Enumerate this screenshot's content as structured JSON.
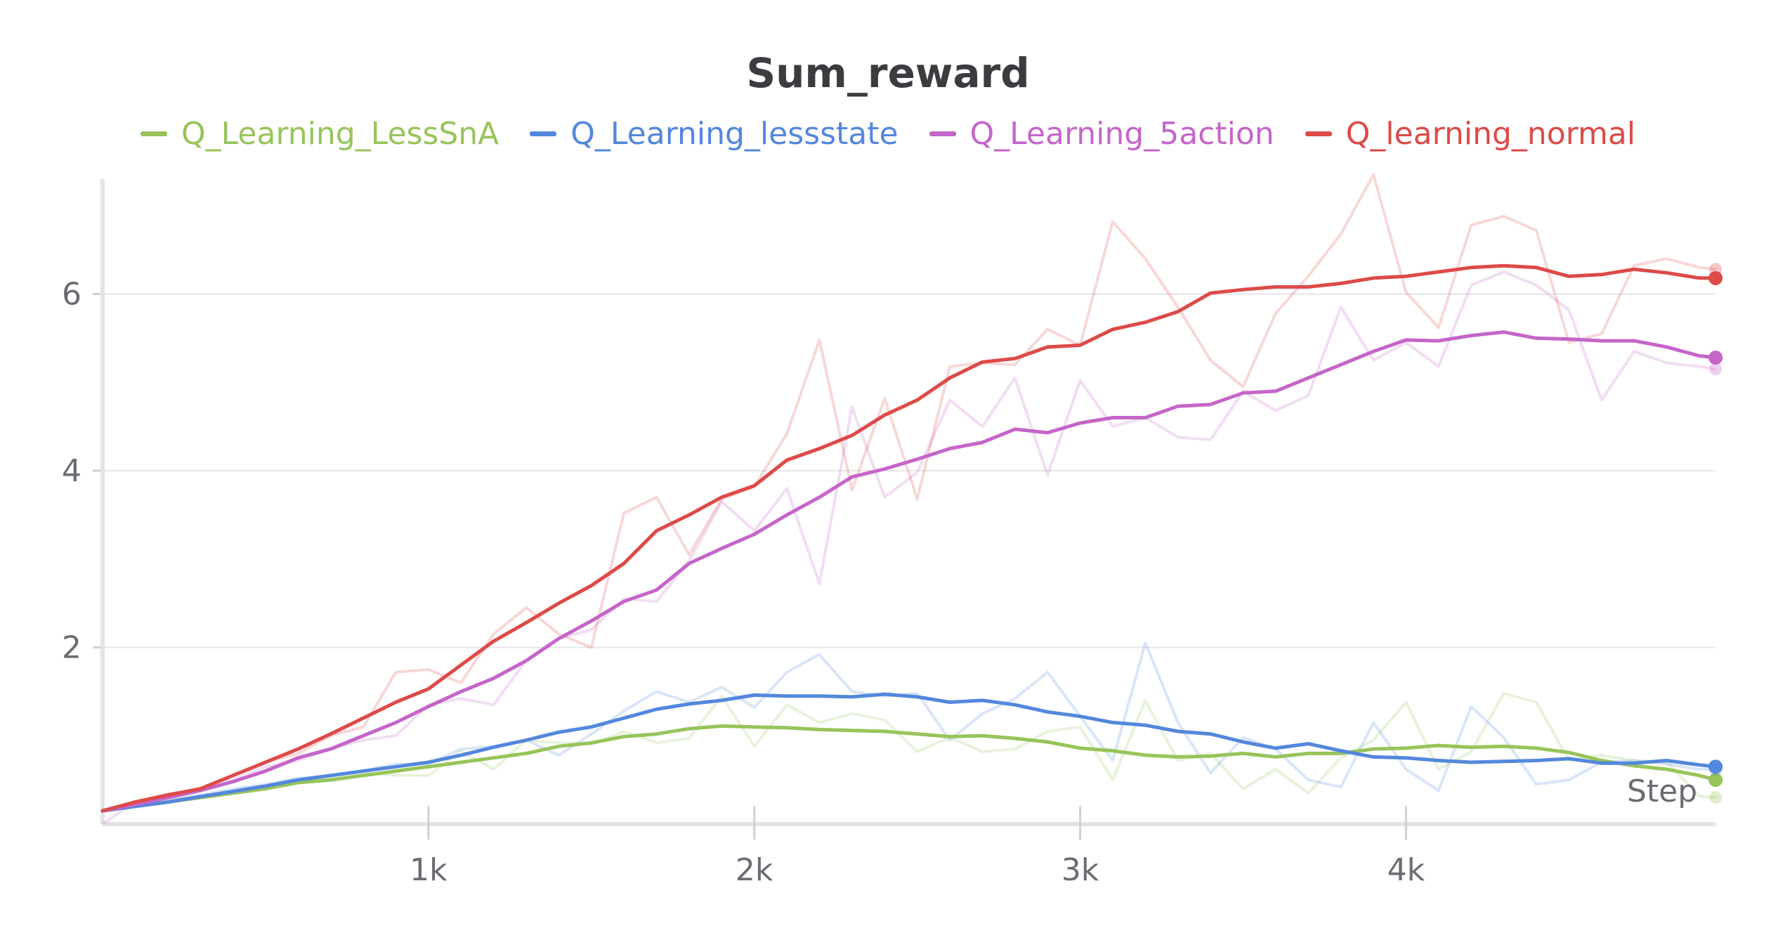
{
  "chart_data": {
    "type": "line",
    "title": "Sum_reward",
    "xlabel": "Step",
    "ylabel": "",
    "xlim": [
      0,
      4950
    ],
    "ylim": [
      0,
      7.3
    ],
    "x_ticks": [
      {
        "value": 1000,
        "label": "1k"
      },
      {
        "value": 2000,
        "label": "2k"
      },
      {
        "value": 3000,
        "label": "3k"
      },
      {
        "value": 4000,
        "label": "4k"
      }
    ],
    "y_ticks": [
      {
        "value": 2,
        "label": "2"
      },
      {
        "value": 4,
        "label": "4"
      },
      {
        "value": 6,
        "label": "6"
      }
    ],
    "grid": "horizontal",
    "legend_position": "top-center",
    "x": [
      0,
      100,
      200,
      300,
      400,
      500,
      600,
      700,
      800,
      900,
      1000,
      1100,
      1200,
      1300,
      1400,
      1500,
      1600,
      1700,
      1800,
      1900,
      2000,
      2100,
      2200,
      2300,
      2400,
      2500,
      2600,
      2700,
      2800,
      2900,
      3000,
      3100,
      3200,
      3300,
      3400,
      3500,
      3600,
      3700,
      3800,
      3900,
      4000,
      4100,
      4200,
      4300,
      4400,
      4500,
      4600,
      4700,
      4800,
      4900,
      4950
    ],
    "series": [
      {
        "name": "Q_Learning_LessSnA",
        "color": "#97c45a",
        "values": [
          0.15,
          0.2,
          0.25,
          0.3,
          0.35,
          0.4,
          0.47,
          0.5,
          0.55,
          0.6,
          0.65,
          0.7,
          0.75,
          0.8,
          0.88,
          0.92,
          0.99,
          1.02,
          1.08,
          1.11,
          1.1,
          1.09,
          1.07,
          1.06,
          1.05,
          1.02,
          0.99,
          1.0,
          0.97,
          0.93,
          0.86,
          0.83,
          0.78,
          0.76,
          0.77,
          0.8,
          0.76,
          0.8,
          0.8,
          0.85,
          0.86,
          0.89,
          0.87,
          0.88,
          0.86,
          0.81,
          0.72,
          0.66,
          0.62,
          0.55,
          0.5
        ],
        "raw": [
          0.15,
          0.22,
          0.27,
          0.32,
          0.37,
          0.42,
          0.48,
          0.52,
          0.58,
          0.55,
          0.55,
          0.83,
          0.62,
          0.95,
          0.92,
          0.9,
          1.05,
          0.92,
          0.97,
          1.45,
          0.88,
          1.35,
          1.15,
          1.25,
          1.18,
          0.82,
          0.98,
          0.82,
          0.85,
          1.05,
          1.1,
          0.5,
          1.4,
          0.72,
          0.8,
          0.4,
          0.62,
          0.35,
          0.75,
          0.95,
          1.38,
          0.62,
          0.82,
          1.48,
          1.38,
          0.72,
          0.78,
          0.72,
          0.7,
          0.32,
          0.3
        ]
      },
      {
        "name": "Q_Learning_lessstate",
        "color": "#5387dd",
        "values": [
          0.15,
          0.2,
          0.25,
          0.31,
          0.37,
          0.43,
          0.5,
          0.55,
          0.6,
          0.65,
          0.7,
          0.78,
          0.87,
          0.95,
          1.04,
          1.1,
          1.2,
          1.3,
          1.36,
          1.4,
          1.46,
          1.45,
          1.45,
          1.44,
          1.47,
          1.44,
          1.38,
          1.4,
          1.35,
          1.27,
          1.22,
          1.15,
          1.12,
          1.05,
          1.02,
          0.93,
          0.86,
          0.91,
          0.83,
          0.76,
          0.75,
          0.72,
          0.7,
          0.71,
          0.72,
          0.74,
          0.69,
          0.69,
          0.72,
          0.67,
          0.65
        ],
        "raw": [
          0.15,
          0.22,
          0.27,
          0.33,
          0.4,
          0.45,
          0.52,
          0.55,
          0.6,
          0.68,
          0.68,
          0.85,
          0.88,
          0.95,
          0.78,
          1.02,
          1.28,
          1.5,
          1.38,
          1.55,
          1.32,
          1.72,
          1.92,
          1.5,
          1.45,
          1.48,
          0.95,
          1.25,
          1.42,
          1.72,
          1.22,
          0.72,
          2.05,
          1.15,
          0.58,
          0.98,
          0.85,
          0.5,
          0.42,
          1.15,
          0.62,
          0.38,
          1.33,
          0.98,
          0.45,
          0.5,
          0.7,
          0.72,
          0.68,
          0.62,
          0.62
        ]
      },
      {
        "name": "Q_Learning_5action",
        "color": "#c565c9",
        "values": [
          0.15,
          0.22,
          0.3,
          0.38,
          0.48,
          0.6,
          0.75,
          0.85,
          1.0,
          1.15,
          1.33,
          1.5,
          1.65,
          1.85,
          2.1,
          2.3,
          2.52,
          2.65,
          2.95,
          3.12,
          3.28,
          3.5,
          3.7,
          3.93,
          4.02,
          4.13,
          4.25,
          4.32,
          4.47,
          4.43,
          4.54,
          4.6,
          4.6,
          4.73,
          4.75,
          4.88,
          4.9,
          5.05,
          5.2,
          5.35,
          5.48,
          5.47,
          5.53,
          5.57,
          5.5,
          5.49,
          5.47,
          5.47,
          5.4,
          5.3,
          5.28
        ],
        "raw": [
          0.0,
          0.25,
          0.32,
          0.4,
          0.5,
          0.65,
          0.72,
          0.85,
          0.95,
          1.0,
          1.35,
          1.42,
          1.35,
          1.85,
          2.1,
          2.2,
          2.55,
          2.52,
          2.98,
          3.65,
          3.32,
          3.8,
          2.72,
          4.72,
          3.7,
          3.98,
          4.8,
          4.5,
          5.05,
          3.95,
          5.02,
          4.5,
          4.6,
          4.38,
          4.35,
          4.9,
          4.68,
          4.85,
          5.85,
          5.25,
          5.45,
          5.18,
          6.1,
          6.25,
          6.1,
          5.82,
          4.8,
          5.35,
          5.22,
          5.18,
          5.15
        ]
      },
      {
        "name": "Q_learning_normal",
        "color": "#dd4a48",
        "values": [
          0.15,
          0.25,
          0.33,
          0.4,
          0.55,
          0.7,
          0.85,
          1.02,
          1.2,
          1.38,
          1.53,
          1.8,
          2.07,
          2.28,
          2.5,
          2.7,
          2.95,
          3.32,
          3.5,
          3.7,
          3.83,
          4.12,
          4.25,
          4.4,
          4.63,
          4.8,
          5.05,
          5.23,
          5.27,
          5.4,
          5.42,
          5.6,
          5.68,
          5.8,
          6.01,
          6.05,
          6.08,
          6.08,
          6.12,
          6.18,
          6.2,
          6.25,
          6.3,
          6.32,
          6.3,
          6.2,
          6.22,
          6.28,
          6.24,
          6.18,
          6.18
        ],
        "raw": [
          0.15,
          0.25,
          0.33,
          0.4,
          0.55,
          0.7,
          0.8,
          1.0,
          1.1,
          1.72,
          1.75,
          1.6,
          2.15,
          2.45,
          2.15,
          2.0,
          3.52,
          3.7,
          3.05,
          3.68,
          3.82,
          4.42,
          5.48,
          3.78,
          4.82,
          3.68,
          5.18,
          5.22,
          5.2,
          5.6,
          5.42,
          6.82,
          6.4,
          5.85,
          5.25,
          4.95,
          5.78,
          6.2,
          6.68,
          7.35,
          6.02,
          5.62,
          6.78,
          6.88,
          6.72,
          5.45,
          5.55,
          6.32,
          6.4,
          6.3,
          6.28
        ]
      }
    ]
  }
}
